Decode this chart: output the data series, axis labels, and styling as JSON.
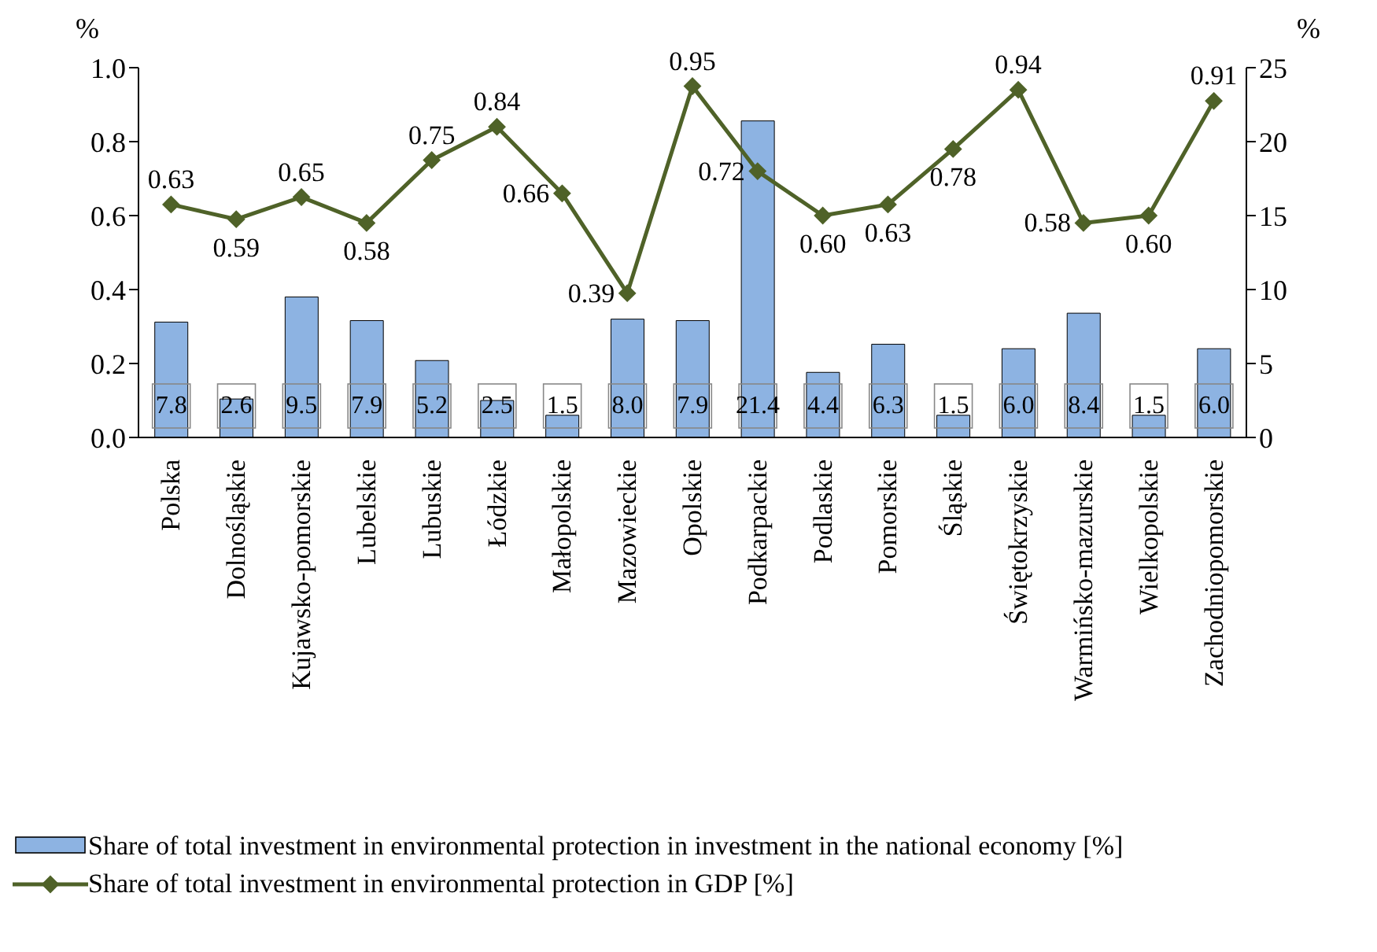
{
  "chart_data": {
    "type": "bar",
    "ylabel": "%",
    "y2label": "%",
    "categories": [
      "Polska",
      "Dolnośląskie",
      "Kujawsko-pomorskie",
      "Lubelskie",
      "Lubuskie",
      "Łódzkie",
      "Małopolskie",
      "Mazowieckie",
      "Opolskie",
      "Podkarpackie",
      "Podlaskie",
      "Pomorskie",
      "Śląskie",
      "Świętokrzyskie",
      "Warmińsko-mazurskie",
      "Wielkopolskie",
      "Zachodniopomorskie"
    ],
    "series": [
      {
        "name": "Share of total investment in environmental protection in investment in the national economy [%]",
        "axis": "y2",
        "color": "#8db3e2",
        "values": [
          7.8,
          2.6,
          9.5,
          7.9,
          5.2,
          2.5,
          1.5,
          8.0,
          7.9,
          21.4,
          4.4,
          6.3,
          1.5,
          6.0,
          8.4,
          1.5,
          6.0
        ],
        "value_labels": [
          "7.8",
          "2.6",
          "9.5",
          "7.9",
          "5.2",
          "2.5",
          "1.5",
          "8.0",
          "7.9",
          "21.4",
          "4.4",
          "6.3",
          "1.5",
          "6.0",
          "8.4",
          "1.5",
          "6.0"
        ]
      },
      {
        "name": "Share of total investment in environmental protection in GDP [%]",
        "type": "line",
        "color": "#4f6228",
        "marker": "diamond",
        "values": [
          0.63,
          0.59,
          0.65,
          0.58,
          0.75,
          0.84,
          0.66,
          0.39,
          0.95,
          0.72,
          0.6,
          0.63,
          0.78,
          0.94,
          0.58,
          0.6,
          0.91
        ],
        "value_labels": [
          "0.63",
          "0.59",
          "0.65",
          "0.58",
          "0.75",
          "0.84",
          "0.66",
          "0.39",
          "0.95",
          "0.72",
          "0.60",
          "0.63",
          "0.78",
          "0.94",
          "0.58",
          "0.60",
          "0.91"
        ]
      }
    ],
    "ylim": [
      0,
      1
    ],
    "yticks": [
      {
        "value": 0,
        "label": "0.0"
      },
      {
        "value": 0.2,
        "label": "0.2"
      },
      {
        "value": 0.4,
        "label": "0.4"
      },
      {
        "value": 0.6,
        "label": "0.6"
      },
      {
        "value": 0.8,
        "label": "0.8"
      },
      {
        "value": 1,
        "label": "1.0"
      }
    ],
    "y2lim": [
      0,
      25
    ],
    "y2ticks": [
      0,
      5,
      10,
      15,
      20,
      25
    ],
    "grid": false,
    "legend": "bottom"
  }
}
